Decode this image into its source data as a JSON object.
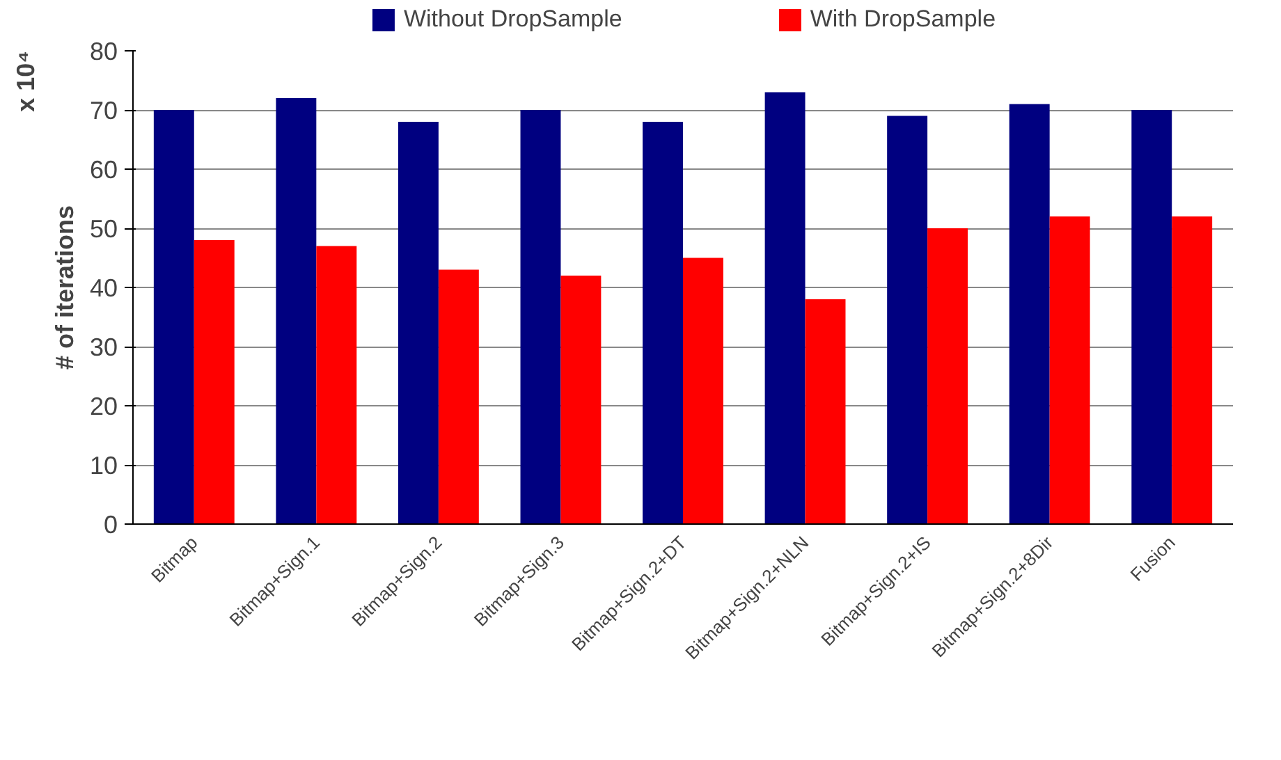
{
  "chart_data": {
    "type": "bar",
    "ylabel": "# of iterations",
    "annotations": [
      "x 10⁴"
    ],
    "categories": [
      "Bitmap",
      "Bitmap+Sign.1",
      "Bitmap+Sign.2",
      "Bitmap+Sign.3",
      "Bitmap+Sign.2+DT",
      "Bitmap+Sign.2+NLN",
      "Bitmap+Sign.2+IS",
      "Bitmap+Sign.2+8Dir",
      "Fusion"
    ],
    "series": [
      {
        "name": "Without DropSample",
        "color": "#000080",
        "values": [
          70,
          72,
          68,
          70,
          68,
          73,
          69,
          71,
          70
        ]
      },
      {
        "name": "With DropSample",
        "color": "#ff0000",
        "values": [
          48,
          47,
          43,
          42,
          45,
          38,
          50,
          52,
          52
        ]
      }
    ],
    "ylim": [
      0,
      80
    ],
    "yticks": [
      0,
      10,
      20,
      30,
      40,
      50,
      60,
      70,
      80
    ],
    "grid": "y",
    "legend": "top"
  }
}
